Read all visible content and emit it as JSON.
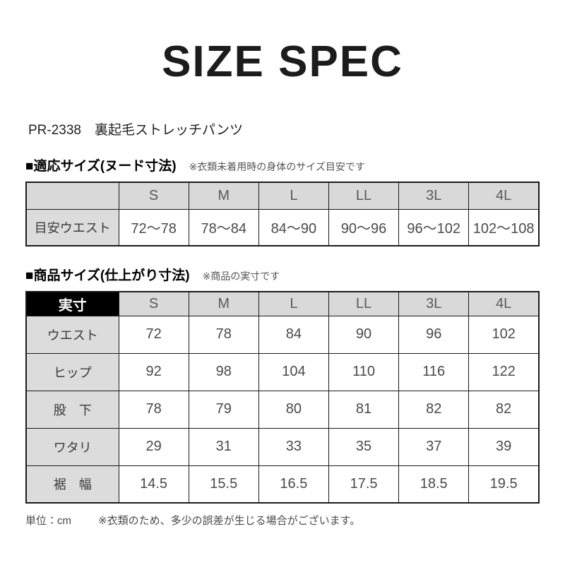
{
  "title": "SIZE SPEC",
  "product": "PR-2338　裏起毛ストレッチパンツ",
  "sections": [
    {
      "heading": "■適応サイズ(ヌード寸法)",
      "note": "※衣類未着用時の身体のサイズ目安です",
      "table": {
        "corner": "",
        "columns": [
          "S",
          "M",
          "L",
          "LL",
          "3L",
          "4L"
        ],
        "rows": [
          {
            "label": "目安ウエスト",
            "values": [
              "72〜78",
              "78〜84",
              "84〜90",
              "90〜96",
              "96〜102",
              "102〜108"
            ]
          }
        ]
      }
    },
    {
      "heading": "■商品サイズ(仕上がり寸法)",
      "note": "※商品の実寸です",
      "table": {
        "corner": "実寸",
        "columns": [
          "S",
          "M",
          "L",
          "LL",
          "3L",
          "4L"
        ],
        "rows": [
          {
            "label": "ウエスト",
            "values": [
              "72",
              "78",
              "84",
              "90",
              "96",
              "102"
            ]
          },
          {
            "label": "ヒップ",
            "values": [
              "92",
              "98",
              "104",
              "110",
              "116",
              "122"
            ]
          },
          {
            "label": "股　下",
            "values": [
              "78",
              "79",
              "80",
              "81",
              "82",
              "82"
            ]
          },
          {
            "label": "ワタリ",
            "values": [
              "29",
              "31",
              "33",
              "35",
              "37",
              "39"
            ]
          },
          {
            "label": "裾　幅",
            "values": [
              "14.5",
              "15.5",
              "16.5",
              "17.5",
              "18.5",
              "19.5"
            ]
          }
        ]
      }
    }
  ],
  "footer": {
    "unit": "単位：cm",
    "note": "※衣類のため、多少の誤差が生じる場合がございます。"
  },
  "colors": {
    "border": "#1a1a1a",
    "header_bg": "#d9d9d9",
    "label_bg": "#dcdcdc",
    "corner_bg": "#000000",
    "corner_text": "#ffffff"
  }
}
